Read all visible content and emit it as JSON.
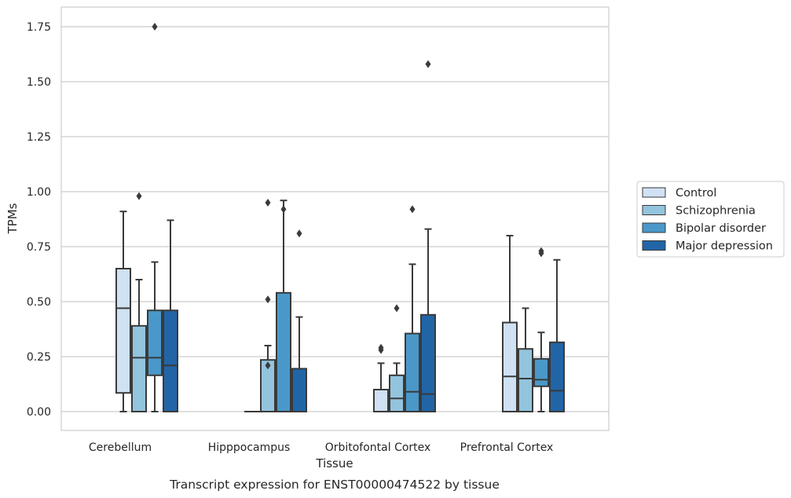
{
  "chart_data": {
    "type": "box",
    "title": "",
    "xlabel": "Tissue",
    "ylabel": "TPMs",
    "caption": "Transcript expression for ENST00000474522 by tissue",
    "ylim": [
      -0.085,
      1.84
    ],
    "yticks": [
      0.0,
      0.25,
      0.5,
      0.75,
      1.0,
      1.25,
      1.5,
      1.75
    ],
    "ytick_labels": [
      "0.00",
      "0.25",
      "0.50",
      "0.75",
      "1.00",
      "1.25",
      "1.50",
      "1.75"
    ],
    "grid": "horizontal",
    "legend_position": "right",
    "categories": [
      "Cerebellum",
      "Hipppocampus",
      "Orbitofontal Cortex",
      "Prefrontal Cortex"
    ],
    "series": [
      {
        "name": "Control",
        "color": "#cfe1f2",
        "boxes": [
          {
            "whislo": 0.0,
            "q1": 0.085,
            "med": 0.47,
            "q3": 0.65,
            "whishi": 0.91,
            "fliers": []
          },
          {
            "whislo": 0.0,
            "q1": 0.0,
            "med": 0.0,
            "q3": 0.0,
            "whishi": 0.0,
            "fliers": []
          },
          {
            "whislo": 0.0,
            "q1": 0.0,
            "med": 0.0,
            "q3": 0.1,
            "whishi": 0.22,
            "fliers": [
              0.28,
              0.29
            ]
          },
          {
            "whislo": 0.0,
            "q1": 0.0,
            "med": 0.16,
            "q3": 0.405,
            "whishi": 0.8,
            "fliers": []
          }
        ]
      },
      {
        "name": "Schizophrenia",
        "color": "#93c4de",
        "boxes": [
          {
            "whislo": 0.0,
            "q1": 0.0,
            "med": 0.245,
            "q3": 0.39,
            "whishi": 0.6,
            "fliers": [
              0.98
            ]
          },
          {
            "whislo": 0.0,
            "q1": 0.0,
            "med": 0.0,
            "q3": 0.235,
            "whishi": 0.3,
            "fliers": [
              0.21,
              0.51,
              0.95
            ]
          },
          {
            "whislo": 0.0,
            "q1": 0.0,
            "med": 0.06,
            "q3": 0.165,
            "whishi": 0.22,
            "fliers": [
              0.47
            ]
          },
          {
            "whislo": 0.0,
            "q1": 0.0,
            "med": 0.15,
            "q3": 0.285,
            "whishi": 0.47,
            "fliers": []
          }
        ]
      },
      {
        "name": "Bipolar disorder",
        "color": "#4a98c9",
        "boxes": [
          {
            "whislo": 0.0,
            "q1": 0.165,
            "med": 0.245,
            "q3": 0.46,
            "whishi": 0.68,
            "fliers": [
              1.75
            ]
          },
          {
            "whislo": 0.0,
            "q1": 0.0,
            "med": 0.0,
            "q3": 0.54,
            "whishi": 0.96,
            "fliers": [
              0.92
            ]
          },
          {
            "whislo": 0.0,
            "q1": 0.0,
            "med": 0.09,
            "q3": 0.355,
            "whishi": 0.67,
            "fliers": [
              0.92
            ]
          },
          {
            "whislo": 0.0,
            "q1": 0.115,
            "med": 0.145,
            "q3": 0.24,
            "whishi": 0.36,
            "fliers": [
              0.72,
              0.73
            ]
          }
        ]
      },
      {
        "name": "Major depression",
        "color": "#2165a7",
        "boxes": [
          {
            "whislo": 0.0,
            "q1": 0.0,
            "med": 0.21,
            "q3": 0.46,
            "whishi": 0.87,
            "fliers": []
          },
          {
            "whislo": 0.0,
            "q1": 0.0,
            "med": 0.0,
            "q3": 0.195,
            "whishi": 0.43,
            "fliers": [
              0.81
            ]
          },
          {
            "whislo": 0.0,
            "q1": 0.0,
            "med": 0.08,
            "q3": 0.44,
            "whishi": 0.83,
            "fliers": [
              1.58
            ]
          },
          {
            "whislo": 0.0,
            "q1": 0.0,
            "med": 0.095,
            "q3": 0.315,
            "whishi": 0.69,
            "fliers": []
          }
        ]
      }
    ]
  }
}
